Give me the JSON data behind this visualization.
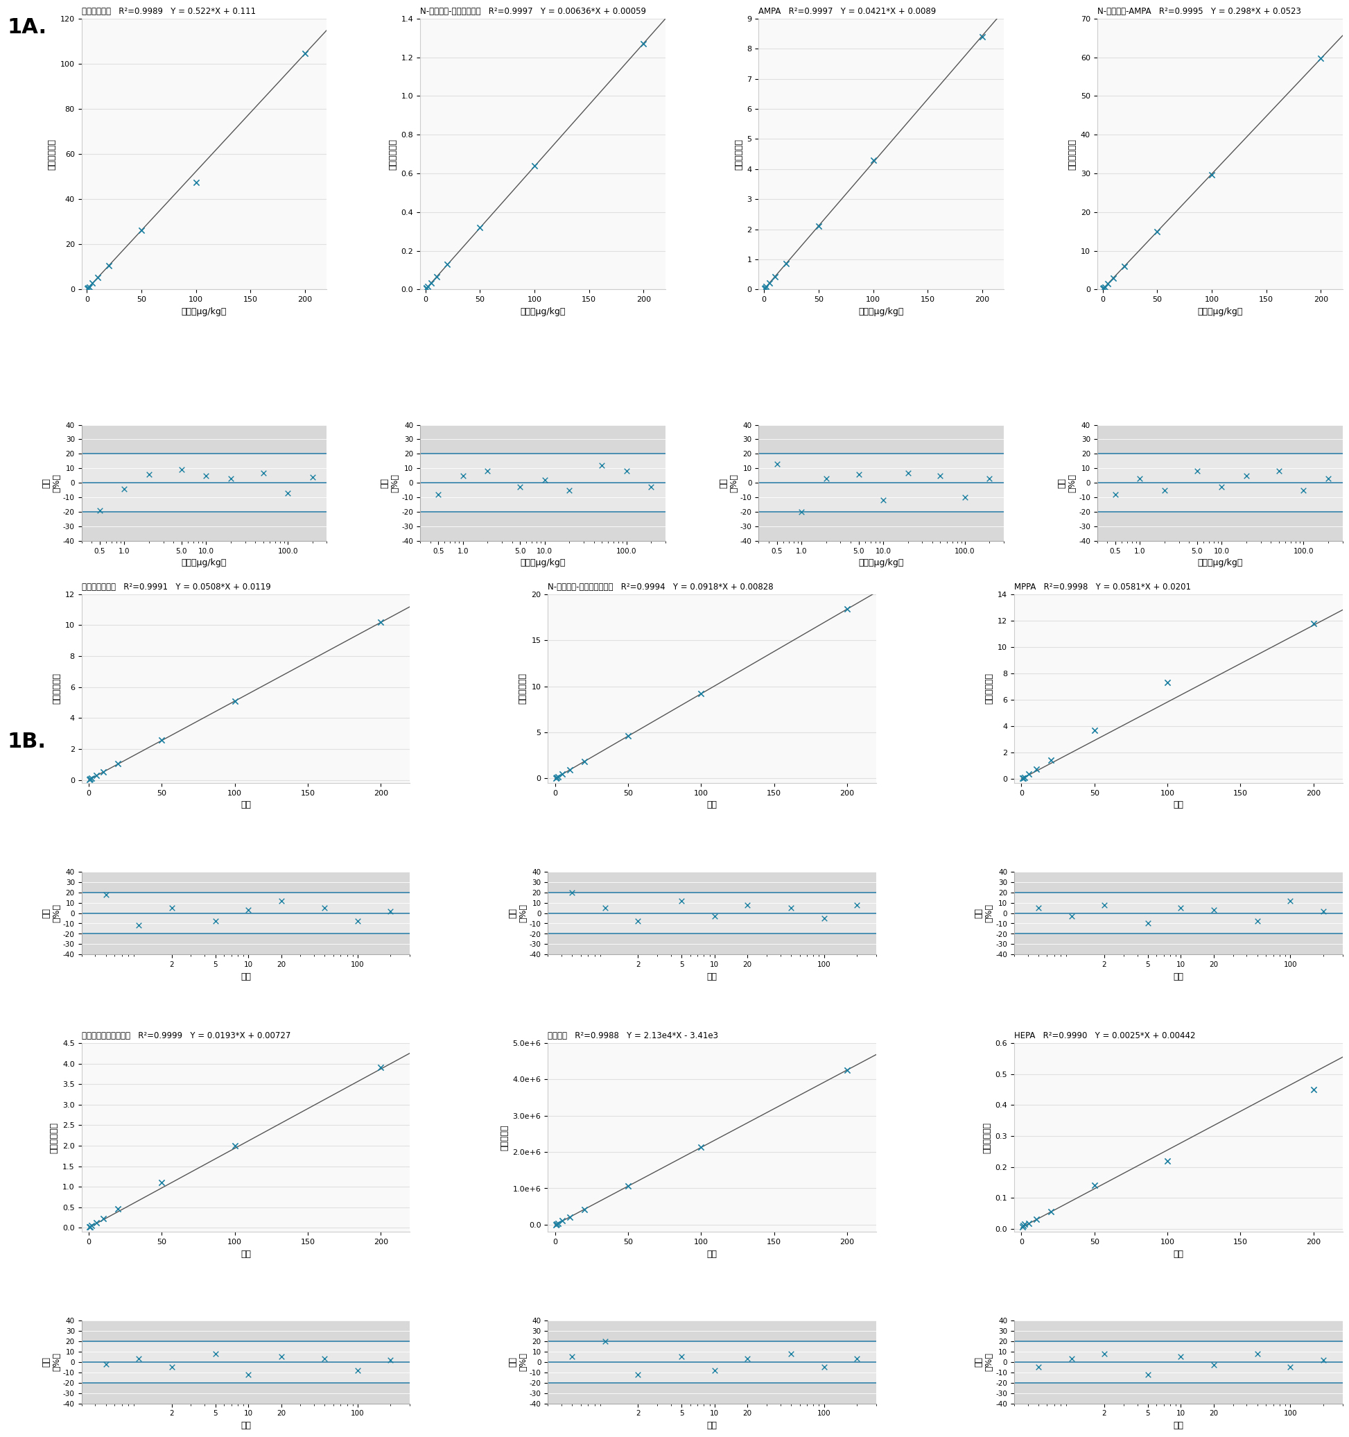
{
  "section_1A_label": "1A.",
  "section_1B_label": "1B.",
  "line_color": "#555555",
  "marker_color": "#1a7fa0",
  "hline_color": "#2e7fa8",
  "cal_bg": "#f9f9f9",
  "res_bg": "#d8d8d8",
  "res_band_bg": "#e8e8e8",
  "grid_color": "#e0e0e0",
  "panel_1A": [
    {
      "name": "グリホサート",
      "r2": "0.9989",
      "eq": "Y = 0.522*X + 0.111",
      "slope": 0.522,
      "intercept": 0.111,
      "x_data": [
        0.5,
        1,
        2,
        5,
        10,
        20,
        50,
        100,
        200
      ],
      "y_data": [
        0.37,
        0.63,
        1.15,
        2.72,
        5.36,
        10.6,
        26.2,
        47.5,
        104.7
      ],
      "ylim": [
        0,
        120
      ],
      "yticks": [
        0,
        20.0,
        40.0,
        60.0,
        80.0,
        100.0,
        120.0
      ],
      "xlim": [
        -5,
        220
      ],
      "xticks": [
        0,
        50,
        100,
        150,
        200
      ],
      "ylabel": "レスポンス比",
      "xlabel": "濃度（μg/kg）",
      "residual_x": [
        0.5,
        1,
        2,
        5,
        10,
        20,
        50,
        100,
        200
      ],
      "residual_y": [
        -19,
        -4,
        6,
        9,
        5,
        3,
        7,
        -7,
        4
      ],
      "res_xticks": [
        0.5,
        1,
        5,
        10,
        100
      ],
      "res_xlabel": "濃度（μg/kg）",
      "res_xlim": [
        0.3,
        300
      ]
    },
    {
      "name": "N-アセチル-グリホサート",
      "r2": "0.9997",
      "eq": "Y = 0.00636*X + 0.00059",
      "slope": 0.00636,
      "intercept": 0.00059,
      "x_data": [
        0.5,
        1,
        2,
        5,
        10,
        20,
        50,
        100,
        200
      ],
      "y_data": [
        0.003,
        0.007,
        0.015,
        0.033,
        0.065,
        0.13,
        0.32,
        0.64,
        1.27
      ],
      "ylim": [
        0,
        1.4
      ],
      "yticks": [
        0.0,
        0.2,
        0.4,
        0.6,
        0.8,
        1.0,
        1.2,
        1.4
      ],
      "xlim": [
        -5,
        220
      ],
      "xticks": [
        0,
        50,
        100,
        150,
        200
      ],
      "ylabel": "レスポンス比",
      "xlabel": "濃度（μg/kg）",
      "residual_x": [
        0.5,
        1,
        2,
        5,
        10,
        20,
        50,
        100,
        200
      ],
      "residual_y": [
        -8,
        5,
        8,
        -3,
        2,
        -5,
        12,
        8,
        -3
      ],
      "res_xticks": [
        0.5,
        1,
        5,
        10,
        100
      ],
      "res_xlabel": "濃度（μg/kg）",
      "res_xlim": [
        0.3,
        300
      ]
    },
    {
      "name": "AMPA",
      "r2": "0.9997",
      "eq": "Y = 0.0421*X + 0.0089",
      "slope": 0.0421,
      "intercept": 0.0089,
      "x_data": [
        0.5,
        1,
        2,
        5,
        10,
        20,
        50,
        100,
        200
      ],
      "y_data": [
        0.03,
        0.05,
        0.1,
        0.22,
        0.43,
        0.86,
        2.1,
        4.3,
        8.4
      ],
      "ylim": [
        0,
        9.0
      ],
      "yticks": [
        0.0,
        1.0,
        2.0,
        3.0,
        4.0,
        5.0,
        6.0,
        7.0,
        8.0,
        9.0
      ],
      "xlim": [
        -5,
        220
      ],
      "xticks": [
        0,
        50,
        100,
        150,
        200
      ],
      "ylabel": "レスポンス比",
      "xlabel": "濃度（μg/kg）",
      "residual_x": [
        0.5,
        1,
        2,
        5,
        10,
        20,
        50,
        100,
        200
      ],
      "residual_y": [
        13,
        -20,
        3,
        6,
        -12,
        7,
        5,
        -10,
        3
      ],
      "res_xticks": [
        0.5,
        1,
        5,
        10,
        100
      ],
      "res_xlabel": "濃度（μg/kg）",
      "res_xlim": [
        0.3,
        300
      ]
    },
    {
      "name": "N-アセチル-AMPA",
      "r2": "0.9995",
      "eq": "Y = 0.298*X + 0.0523",
      "slope": 0.298,
      "intercept": 0.0523,
      "x_data": [
        0.5,
        1,
        2,
        5,
        10,
        20,
        50,
        100,
        200
      ],
      "y_data": [
        0.2,
        0.35,
        0.65,
        1.55,
        3.0,
        6.0,
        15.0,
        29.7,
        59.7
      ],
      "ylim": [
        0,
        70
      ],
      "yticks": [
        0,
        10.0,
        20.0,
        30.0,
        40.0,
        50.0,
        60.0,
        70.0
      ],
      "xlim": [
        -5,
        220
      ],
      "xticks": [
        0,
        50,
        100,
        150,
        200
      ],
      "ylabel": "レスポンス比",
      "xlabel": "濃度（μg/kg）",
      "residual_x": [
        0.5,
        1,
        2,
        5,
        10,
        20,
        50,
        100,
        200
      ],
      "residual_y": [
        -8,
        3,
        -5,
        8,
        -3,
        5,
        8,
        -5,
        3
      ],
      "res_xticks": [
        0.5,
        1,
        5,
        10,
        100
      ],
      "res_xlabel": "濃度（μg/kg）",
      "res_xlim": [
        0.3,
        300
      ]
    }
  ],
  "panel_1B_top": [
    {
      "name": "グルホシネート",
      "r2": "0.9991",
      "eq": "Y = 0.0508*X + 0.0119",
      "slope": 0.0508,
      "intercept": 0.0119,
      "x_data": [
        0.5,
        1,
        2,
        5,
        10,
        20,
        50,
        100,
        200
      ],
      "y_data": [
        0.04,
        0.06,
        0.12,
        0.28,
        0.53,
        1.05,
        2.6,
        5.1,
        10.2
      ],
      "ylim": [
        -0.2,
        12.0
      ],
      "yticks": [
        0.0,
        2.0,
        4.0,
        6.0,
        8.0,
        10.0,
        12.0
      ],
      "xlim": [
        -5,
        220
      ],
      "xticks": [
        0,
        50,
        100,
        150,
        200
      ],
      "ylabel": "レスポンス比",
      "xlabel": "濃度",
      "residual_x": [
        0.5,
        1,
        2,
        5,
        10,
        20,
        50,
        100,
        200
      ],
      "residual_y": [
        18,
        -12,
        5,
        -8,
        3,
        12,
        5,
        -8,
        2
      ],
      "res_xticks": [
        2,
        5,
        10,
        20,
        100
      ],
      "res_xlabel": "濃度",
      "res_xlim": [
        0.3,
        300
      ]
    },
    {
      "name": "N-アセチル-グルホシネート",
      "r2": "0.9994",
      "eq": "Y = 0.0918*X + 0.00828",
      "slope": 0.0918,
      "intercept": 0.00828,
      "x_data": [
        0.5,
        1,
        2,
        5,
        10,
        20,
        50,
        100,
        200
      ],
      "y_data": [
        0.05,
        0.1,
        0.19,
        0.47,
        0.93,
        1.85,
        4.6,
        9.2,
        18.4
      ],
      "ylim": [
        -0.5,
        20.0
      ],
      "yticks": [
        0.0,
        5.0,
        10.0,
        15.0,
        20.0
      ],
      "xlim": [
        -5,
        220
      ],
      "xticks": [
        0,
        50,
        100,
        150,
        200
      ],
      "ylabel": "レスポンス比",
      "xlabel": "濃度",
      "residual_x": [
        0.5,
        1,
        2,
        5,
        10,
        20,
        50,
        100,
        200
      ],
      "residual_y": [
        20,
        5,
        -8,
        12,
        -3,
        8,
        5,
        -5,
        8
      ],
      "res_xticks": [
        2,
        5,
        10,
        20,
        100
      ],
      "res_xlabel": "濃度",
      "res_xlim": [
        0.3,
        300
      ]
    },
    {
      "name": "MPPA",
      "r2": "0.9998",
      "eq": "Y = 0.0581*X + 0.0201",
      "slope": 0.0581,
      "intercept": 0.0201,
      "x_data": [
        0.5,
        1,
        2,
        5,
        10,
        20,
        50,
        100,
        200
      ],
      "y_data": [
        0.05,
        0.08,
        0.15,
        0.37,
        0.74,
        1.45,
        3.7,
        7.3,
        11.8
      ],
      "ylim": [
        -0.3,
        14.0
      ],
      "yticks": [
        0.0,
        2.0,
        4.0,
        6.0,
        8.0,
        10.0,
        12.0,
        14.0
      ],
      "xlim": [
        -5,
        220
      ],
      "xticks": [
        0,
        50,
        100,
        150,
        200
      ],
      "ylabel": "レスポンス比",
      "xlabel": "濃度",
      "residual_x": [
        0.5,
        1,
        2,
        5,
        10,
        20,
        50,
        100,
        200
      ],
      "residual_y": [
        5,
        -3,
        8,
        -10,
        5,
        3,
        -8,
        12,
        2
      ],
      "res_xticks": [
        2,
        5,
        10,
        20,
        100
      ],
      "res_xlabel": "濃度",
      "res_xlim": [
        0.3,
        300
      ]
    }
  ],
  "panel_1B_bottom": [
    {
      "name": "ホセチルアルミニウム",
      "r2": "0.9999",
      "eq": "Y = 0.0193*X + 0.00727",
      "slope": 0.0193,
      "intercept": 0.00727,
      "x_data": [
        0.5,
        1,
        2,
        5,
        10,
        20,
        50,
        100,
        200
      ],
      "y_data": [
        0.02,
        0.03,
        0.05,
        0.13,
        0.23,
        0.46,
        1.1,
        2.0,
        3.9
      ],
      "ylim": [
        -0.1,
        4.5
      ],
      "yticks": [
        0.0,
        0.5,
        1.0,
        1.5,
        2.0,
        2.5,
        3.0,
        3.5,
        4.0,
        4.5
      ],
      "xlim": [
        -5,
        220
      ],
      "xticks": [
        0,
        50,
        100,
        150,
        200
      ],
      "ylabel": "レスポンス比",
      "xlabel": "濃度",
      "residual_x": [
        0.5,
        1,
        2,
        5,
        10,
        20,
        50,
        100,
        200
      ],
      "residual_y": [
        -2,
        3,
        -5,
        8,
        -12,
        5,
        3,
        -8,
        2
      ],
      "res_xticks": [
        2,
        5,
        10,
        20,
        100
      ],
      "res_xlabel": "濃度",
      "res_xlim": [
        0.3,
        300
      ]
    },
    {
      "name": "エテホン",
      "r2": "0.9988",
      "eq": "Y = 2.13e4*X - 3.41e3",
      "slope": 21300,
      "intercept": -3410,
      "x_data": [
        0.5,
        1,
        2,
        5,
        10,
        20,
        50,
        100,
        200
      ],
      "y_data": [
        7200,
        18000,
        39000,
        103000,
        209000,
        422000,
        1063000,
        2127000,
        4257000
      ],
      "ylim": [
        -200000,
        5000000
      ],
      "yticks": [
        0,
        1000000,
        2000000,
        3000000,
        4000000,
        5000000
      ],
      "ytick_labels": [
        "0.0",
        "1.0e+6",
        "2.0e+6",
        "3.0e+6",
        "4.0e+6",
        "5.0e+6"
      ],
      "xlim": [
        -5,
        220
      ],
      "xticks": [
        0,
        50,
        100,
        150,
        200
      ],
      "ylabel": "レスポンス",
      "xlabel": "濃度",
      "residual_x": [
        0.5,
        1,
        2,
        5,
        10,
        20,
        50,
        100,
        200
      ],
      "residual_y": [
        5,
        20,
        -12,
        5,
        -8,
        3,
        8,
        -5,
        3
      ],
      "res_xticks": [
        2,
        5,
        10,
        20,
        100
      ],
      "res_xlabel": "濃度",
      "res_xlim": [
        0.3,
        300
      ]
    },
    {
      "name": "HEPA",
      "r2": "0.9990",
      "eq": "Y = 0.0025*X + 0.00442",
      "slope": 0.0025,
      "intercept": 0.00442,
      "x_data": [
        0.5,
        1,
        2,
        5,
        10,
        20,
        50,
        100,
        200
      ],
      "y_data": [
        0.006,
        0.01,
        0.015,
        0.018,
        0.032,
        0.055,
        0.14,
        0.22,
        0.45
      ],
      "ylim": [
        -0.01,
        0.6
      ],
      "yticks": [
        0.0,
        0.1,
        0.2,
        0.3,
        0.4,
        0.5,
        0.6
      ],
      "xlim": [
        -5,
        220
      ],
      "xticks": [
        0,
        50,
        100,
        150,
        200
      ],
      "ylabel": "レスポンス比",
      "xlabel": "濃度",
      "residual_x": [
        0.5,
        1,
        2,
        5,
        10,
        20,
        50,
        100,
        200
      ],
      "residual_y": [
        -5,
        3,
        8,
        -12,
        5,
        -3,
        8,
        -5,
        2
      ],
      "res_xticks": [
        2,
        5,
        10,
        20,
        100
      ],
      "res_xlabel": "濃度",
      "res_xlim": [
        0.3,
        300
      ]
    }
  ]
}
